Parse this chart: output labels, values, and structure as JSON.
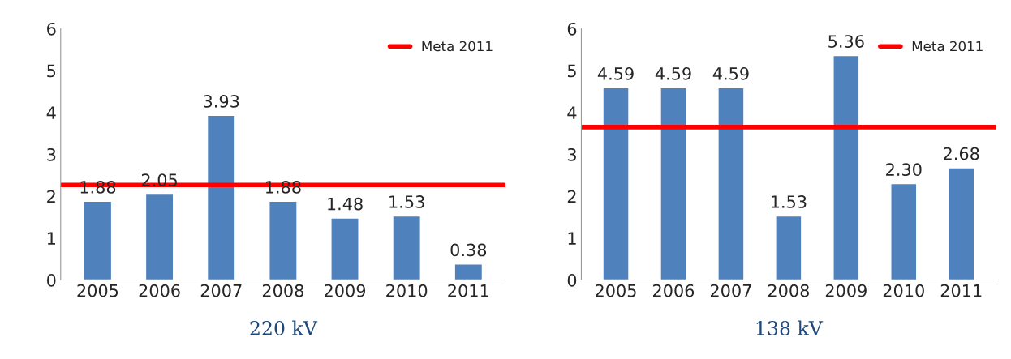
{
  "chart_data": [
    {
      "type": "bar",
      "xlabel": "220 kV",
      "categories": [
        "2005",
        "2006",
        "2007",
        "2008",
        "2009",
        "2010",
        "2011"
      ],
      "values": [
        1.88,
        2.05,
        3.93,
        1.88,
        1.48,
        1.53,
        0.38
      ],
      "color": "#4f81bd",
      "data_labels": true,
      "ylim": [
        0,
        6
      ],
      "yticks": [
        0,
        1,
        2,
        3,
        4,
        5,
        6
      ],
      "grid": false,
      "legend": "top right",
      "ref_lines": [
        {
          "axis": "y",
          "value": 2.27,
          "label": "Meta 2011",
          "color": "#ff0000"
        }
      ]
    },
    {
      "type": "bar",
      "xlabel": "138 kV",
      "categories": [
        "2005",
        "2006",
        "2007",
        "2008",
        "2009",
        "2010",
        "2011"
      ],
      "values": [
        4.59,
        4.59,
        4.59,
        1.53,
        5.36,
        2.3,
        2.68
      ],
      "value_labels": [
        "4.59",
        "4.59",
        "4.59",
        "1.53",
        "5.36",
        "2.30",
        "2.68"
      ],
      "color": "#4f81bd",
      "ylim": [
        0,
        6
      ],
      "yticks": [
        0,
        1,
        2,
        3,
        4,
        5,
        6
      ],
      "grid": false,
      "legend": "top right",
      "ref_lines": [
        {
          "axis": "y",
          "value": 3.65,
          "label": "Meta 2011",
          "color": "#ff0000"
        }
      ]
    }
  ]
}
